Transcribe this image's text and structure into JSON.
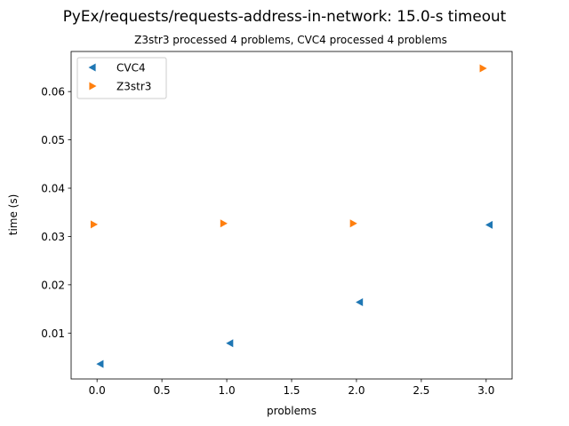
{
  "chart_data": {
    "type": "scatter",
    "title": "PyEx/requests/requests-address-in-network: 15.0-s timeout",
    "subtitle": "Z3str3 processed 4 problems, CVC4 processed 4 problems",
    "xlabel": "problems",
    "ylabel": "time (s)",
    "xlim": [
      -0.2,
      3.2
    ],
    "ylim": [
      0.0005,
      0.0683
    ],
    "xticks": [
      0.0,
      0.5,
      1.0,
      1.5,
      2.0,
      2.5,
      3.0
    ],
    "xtick_labels": [
      "0.0",
      "0.5",
      "1.0",
      "1.5",
      "2.0",
      "2.5",
      "3.0"
    ],
    "yticks": [
      0.01,
      0.02,
      0.03,
      0.04,
      0.05,
      0.06
    ],
    "ytick_labels": [
      "0.01",
      "0.02",
      "0.03",
      "0.04",
      "0.05",
      "0.06"
    ],
    "grid": false,
    "legend": "upper left",
    "series": [
      {
        "name": "CVC4",
        "marker": "triangle-left",
        "color": "#1f77b4",
        "x": [
          0.025,
          1.025,
          2.025,
          3.025
        ],
        "values": [
          0.0036,
          0.0079,
          0.0164,
          0.0324
        ]
      },
      {
        "name": "Z3str3",
        "marker": "triangle-right",
        "color": "#ff7f0e",
        "x": [
          -0.025,
          0.975,
          1.975,
          2.975
        ],
        "values": [
          0.0325,
          0.0327,
          0.0327,
          0.0648
        ]
      }
    ]
  }
}
